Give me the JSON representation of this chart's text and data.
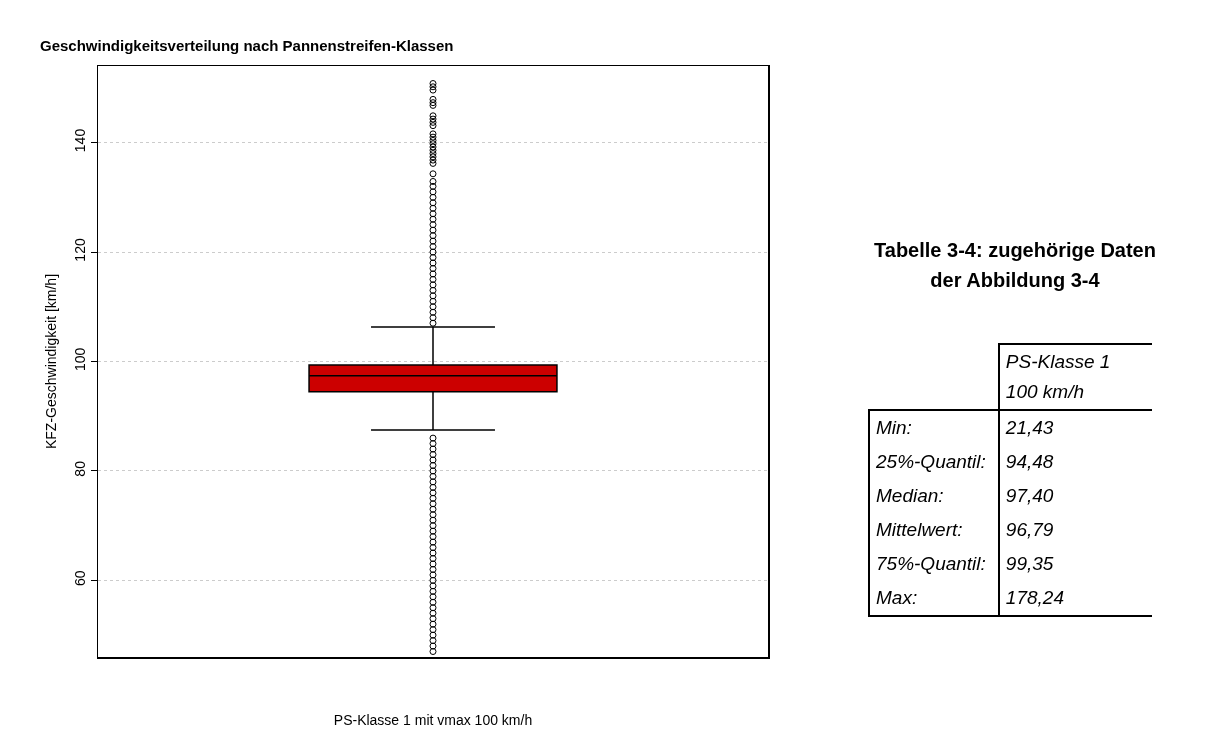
{
  "chart_data": [
    {
      "type": "box",
      "title": "Geschwindigkeitsverteilung nach Pannenstreifen-Klassen",
      "xlabel": "PS-Klasse 1 mit vmax 100 km/h",
      "ylabel": "KFZ-Geschwindigkeit [km/h]",
      "categories": [
        null
      ],
      "color": "#cc0000",
      "ylim": [
        46,
        154
      ],
      "yticks": [
        60,
        80,
        100,
        120,
        140
      ],
      "grid": "y",
      "marker": "circle",
      "boxes": [
        {
          "low": 87.5,
          "q1": 94.48,
          "median": 97.4,
          "q3": 99.35,
          "high": 106.3,
          "outliers": [
            150.8,
            150.2,
            149.6,
            147.9,
            147.3,
            146.8,
            144.9,
            144.3,
            143.7,
            143.1,
            141.6,
            141,
            140.4,
            139.8,
            139.2,
            138.6,
            138,
            137.4,
            136.8,
            136.2,
            134.3,
            132.9,
            132,
            131,
            130,
            129,
            128,
            127,
            126,
            125,
            124,
            123,
            122,
            121,
            120,
            119,
            118,
            117,
            116,
            115,
            114,
            113,
            112,
            111,
            110,
            109,
            108,
            107,
            86,
            85,
            84,
            83,
            82,
            81,
            80,
            79,
            78,
            77,
            76,
            75,
            74,
            73,
            72,
            71,
            70,
            69,
            68,
            67,
            66,
            65,
            64,
            63,
            62,
            61,
            60,
            59,
            58,
            57,
            56,
            55,
            54,
            53,
            52,
            51,
            50,
            49,
            48,
            47
          ]
        }
      ]
    },
    {
      "type": "other",
      "title": "Tabelle 3-4: zugehörige Daten der Abbildung 3-4",
      "annotations": [
        "PS-Klasse 1",
        "100 km/h",
        "Min:",
        "21,43",
        "25%-Quantil:",
        "94,48",
        "Median:",
        "97,40",
        "Mittelwert:",
        "96,79",
        "75%-Quantil:",
        "99,35",
        "Max:",
        "178,24"
      ]
    }
  ]
}
